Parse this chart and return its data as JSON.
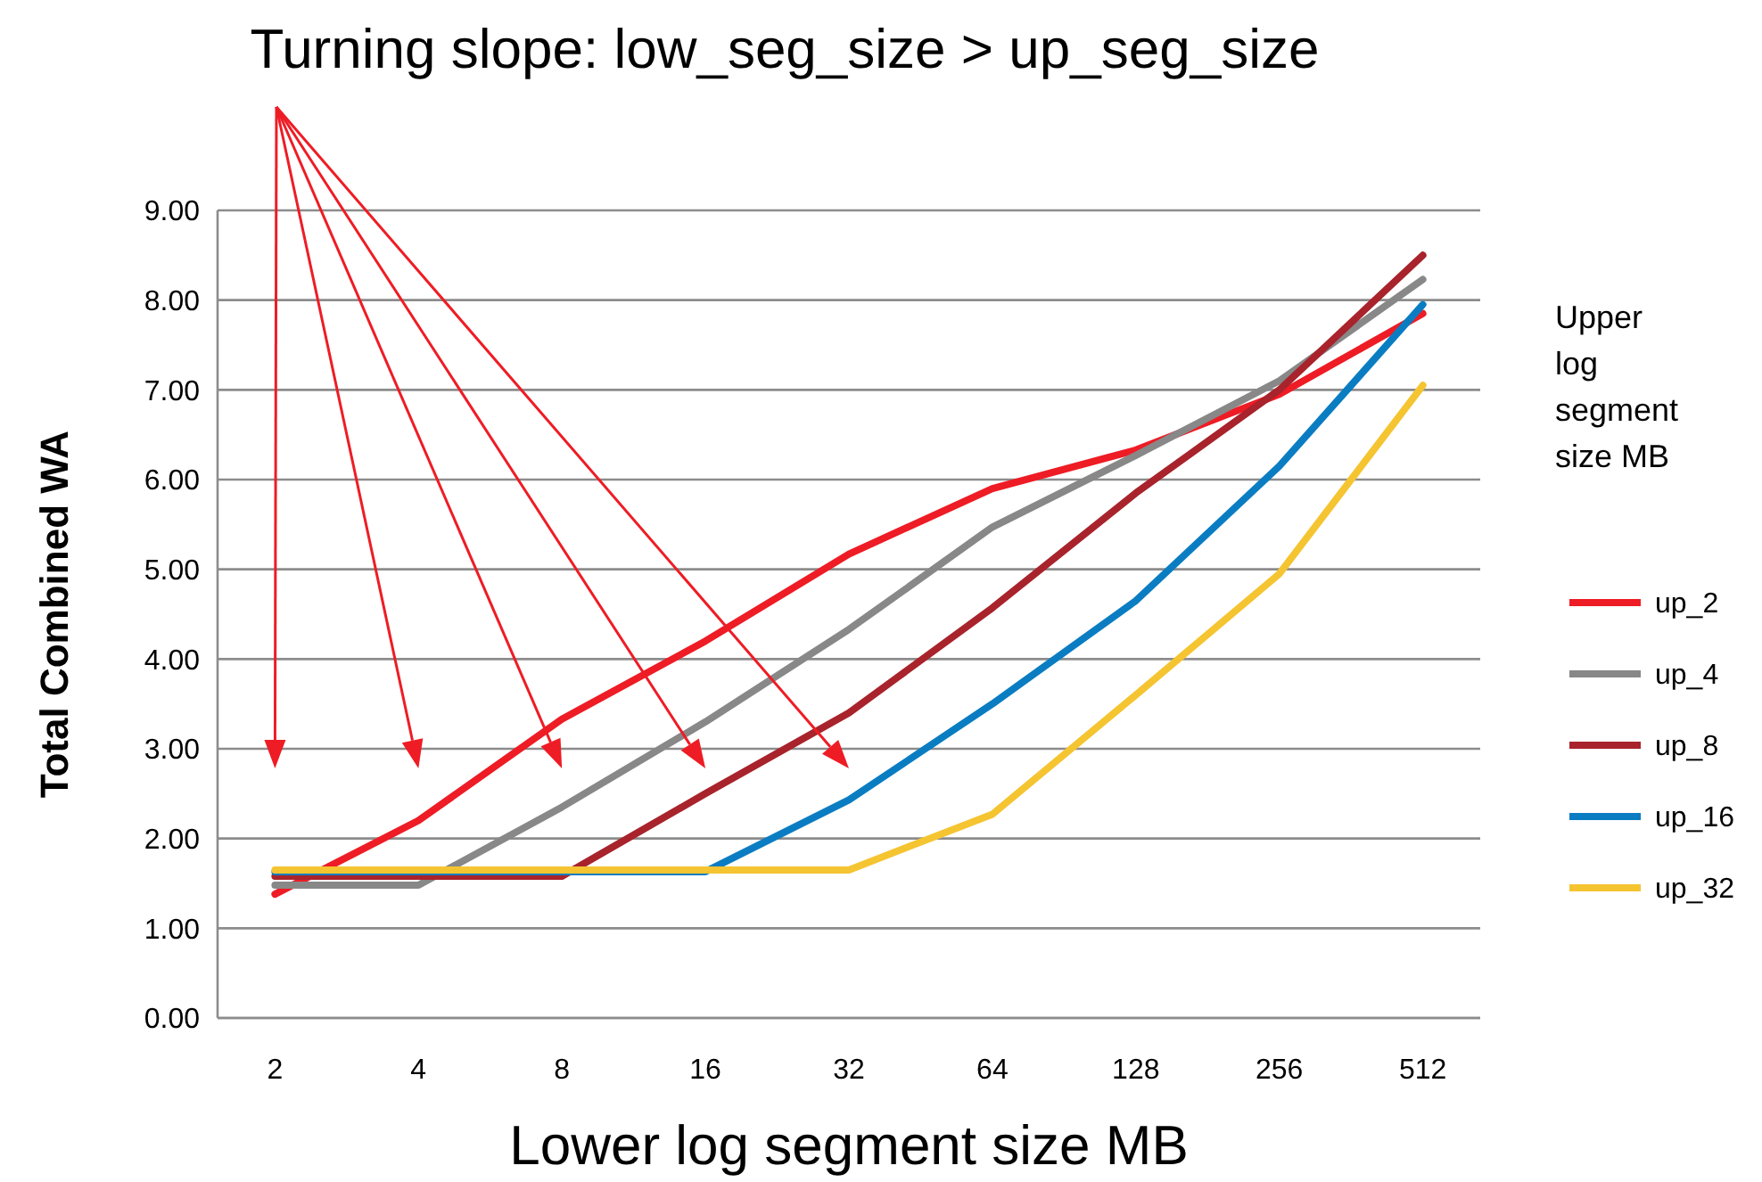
{
  "chart_data": {
    "type": "line",
    "title": "Turning slope: low_seg_size > up_seg_size",
    "xlabel": "Lower log segment size MB",
    "ylabel": "Total Combined WA",
    "legend_title": "Upper log segment size MB",
    "categories": [
      "2",
      "4",
      "8",
      "16",
      "32",
      "64",
      "128",
      "256",
      "512"
    ],
    "series": [
      {
        "name": "up_2",
        "color": "#ee1c25",
        "values": [
          1.38,
          2.2,
          3.33,
          4.2,
          5.17,
          5.9,
          6.33,
          6.95,
          7.85
        ]
      },
      {
        "name": "up_4",
        "color": "#888888",
        "values": [
          1.48,
          1.48,
          2.35,
          3.3,
          4.33,
          5.47,
          6.27,
          7.1,
          8.23
        ]
      },
      {
        "name": "up_8",
        "color": "#a8232b",
        "values": [
          1.58,
          1.58,
          1.58,
          2.5,
          3.4,
          4.57,
          5.85,
          7.0,
          8.5
        ]
      },
      {
        "name": "up_16",
        "color": "#0a7dc2",
        "values": [
          1.63,
          1.63,
          1.63,
          1.63,
          2.43,
          3.5,
          4.65,
          6.15,
          7.95
        ]
      },
      {
        "name": "up_32",
        "color": "#f5c431",
        "values": [
          1.65,
          1.65,
          1.65,
          1.65,
          1.65,
          2.27,
          3.6,
          4.95,
          7.05
        ]
      }
    ],
    "ylim": [
      0,
      9
    ],
    "yticks": [
      {
        "value": 0,
        "label": "0.00"
      },
      {
        "value": 1,
        "label": "1.00"
      },
      {
        "value": 2,
        "label": "2.00"
      },
      {
        "value": 3,
        "label": "3.00"
      },
      {
        "value": 4,
        "label": "4.00"
      },
      {
        "value": 5,
        "label": "5.00"
      },
      {
        "value": 6,
        "label": "6.00"
      },
      {
        "value": 7,
        "label": "7.00"
      },
      {
        "value": 8,
        "label": "8.00"
      },
      {
        "value": 9,
        "label": "9.00"
      }
    ],
    "grid": "y",
    "legend": "right",
    "marker": "none",
    "line_style": "solid"
  }
}
